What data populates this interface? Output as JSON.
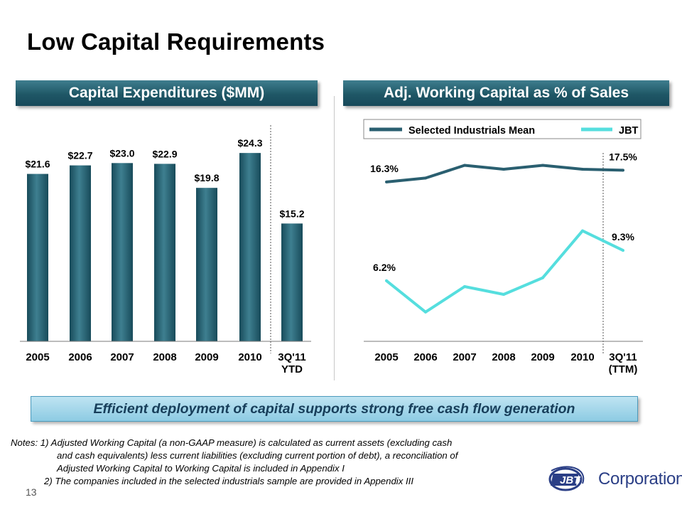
{
  "slide": {
    "title": "Low Capital Requirements",
    "page_number": "13",
    "callout": "Efficient deployment of capital supports strong free cash flow generation",
    "notes": [
      "Notes: 1) Adjusted Working Capital (a non-GAAP measure) is calculated as current assets (excluding cash",
      "and cash equivalents) less current liabilities (excluding current portion of debt), a reconciliation of",
      "Adjusted Working Capital to Working Capital is included in Appendix I",
      "2) The companies included in the selected industrials sample are provided in Appendix III"
    ],
    "logo": {
      "mark": "JBT",
      "word": "Corporation"
    }
  },
  "colors": {
    "bar": "#1f5a6b",
    "bar_light": "#3e7f90",
    "series_mean": "#2a5f70",
    "series_jbt": "#55dede",
    "header_bg": "#1f5766",
    "callout_text": "#173e5a"
  },
  "chart_data": [
    {
      "type": "bar",
      "title": "Capital Expenditures ($MM)",
      "categories": [
        "2005",
        "2006",
        "2007",
        "2008",
        "2009",
        "2010",
        "3Q'11\nYTD"
      ],
      "values": [
        21.6,
        22.7,
        23.0,
        22.9,
        19.8,
        24.3,
        15.2
      ],
      "data_labels": [
        "$21.6",
        "$22.7",
        "$23.0",
        "$22.9",
        "$19.8",
        "$24.3",
        "$15.2"
      ],
      "ylim": [
        0,
        30
      ],
      "grid": false,
      "separator_before_last": true
    },
    {
      "type": "line",
      "title": "Adj. Working Capital as % of Sales",
      "categories": [
        "2005",
        "2006",
        "2007",
        "2008",
        "2009",
        "2010",
        "3Q'11\n(TTM)"
      ],
      "series": [
        {
          "name": "Selected Industrials Mean",
          "values": [
            16.3,
            16.7,
            18.0,
            17.6,
            18.0,
            17.6,
            17.5
          ],
          "labels": {
            "0": "16.3%",
            "6": "17.5%"
          }
        },
        {
          "name": "JBT",
          "values": [
            6.2,
            3.0,
            5.6,
            4.8,
            6.5,
            11.3,
            9.3
          ],
          "labels": {
            "0": "6.2%",
            "6": "9.3%"
          }
        }
      ],
      "ylim": [
        0,
        20
      ],
      "legend": "top",
      "grid": false,
      "separator_before_last": true
    }
  ]
}
